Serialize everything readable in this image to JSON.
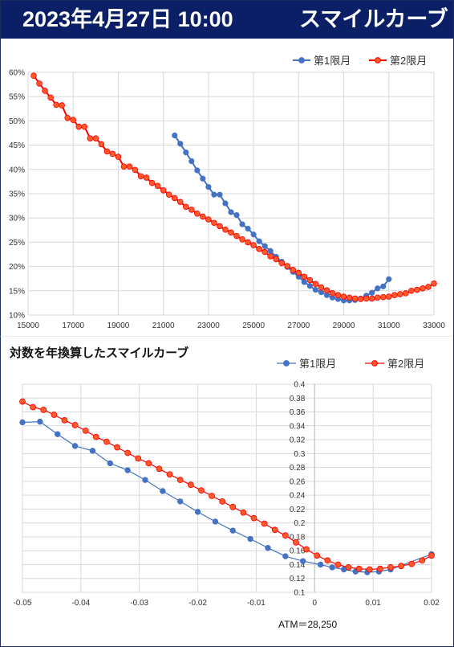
{
  "banner": {
    "date": "2023年4月27日 10:00",
    "title": "スマイルカーブ"
  },
  "colors": {
    "banner_bg": "#0a1f66",
    "series1": "#4472c4",
    "series2": "#ff0000",
    "series2_fill": "#ff5a2c",
    "grid": "#d9d9d9"
  },
  "chart_data": [
    {
      "type": "line",
      "title": "",
      "xlabel": "",
      "ylabel": "",
      "xlim": [
        15000,
        33000
      ],
      "ylim": [
        0.1,
        0.6
      ],
      "xticks": [
        "15000",
        "17000",
        "19000",
        "21000",
        "23000",
        "25000",
        "27000",
        "29000",
        "31000",
        "33000"
      ],
      "yticks": [
        "10%",
        "15%",
        "20%",
        "25%",
        "30%",
        "35%",
        "40%",
        "45%",
        "50%",
        "55%",
        "60%"
      ],
      "grid": true,
      "legend": "top-right",
      "series": [
        {
          "name": "第1限月",
          "x": [
            21500,
            21750,
            22000,
            22250,
            22500,
            22750,
            23000,
            23250,
            23500,
            23750,
            24000,
            24250,
            24500,
            24750,
            25000,
            25250,
            25500,
            25750,
            26000,
            26250,
            26500,
            26750,
            27000,
            27250,
            27500,
            27750,
            28000,
            28250,
            28500,
            28750,
            29000,
            29250,
            29500,
            29750,
            30000,
            30250,
            30500,
            30750,
            31000
          ],
          "y": [
            0.47,
            0.453,
            0.435,
            0.417,
            0.398,
            0.381,
            0.364,
            0.348,
            0.348,
            0.33,
            0.312,
            0.306,
            0.287,
            0.278,
            0.266,
            0.252,
            0.242,
            0.232,
            0.22,
            0.21,
            0.199,
            0.189,
            0.179,
            0.168,
            0.16,
            0.152,
            0.147,
            0.141,
            0.136,
            0.133,
            0.13,
            0.13,
            0.131,
            0.134,
            0.14,
            0.146,
            0.155,
            0.159,
            0.174
          ]
        },
        {
          "name": "第2限月",
          "x": [
            15250,
            15500,
            15750,
            16000,
            16250,
            16500,
            16750,
            17000,
            17250,
            17500,
            17750,
            18000,
            18250,
            18500,
            18750,
            19000,
            19250,
            19500,
            19750,
            20000,
            20250,
            20500,
            20750,
            21000,
            21250,
            21500,
            21750,
            22000,
            22250,
            22500,
            22750,
            23000,
            23250,
            23500,
            23750,
            24000,
            24250,
            24500,
            24750,
            25000,
            25250,
            25500,
            25750,
            26000,
            26250,
            26500,
            26750,
            27000,
            27250,
            27500,
            27750,
            28000,
            28250,
            28500,
            28750,
            29000,
            29250,
            29500,
            29750,
            30000,
            30250,
            30500,
            30750,
            31000,
            31250,
            31500,
            31750,
            32000,
            32250,
            32500,
            32750,
            33000
          ],
          "y": [
            0.593,
            0.577,
            0.562,
            0.548,
            0.533,
            0.532,
            0.506,
            0.502,
            0.488,
            0.488,
            0.464,
            0.464,
            0.452,
            0.437,
            0.432,
            0.426,
            0.406,
            0.406,
            0.399,
            0.386,
            0.383,
            0.372,
            0.366,
            0.357,
            0.348,
            0.341,
            0.333,
            0.323,
            0.317,
            0.309,
            0.303,
            0.297,
            0.29,
            0.283,
            0.276,
            0.27,
            0.263,
            0.256,
            0.25,
            0.244,
            0.236,
            0.23,
            0.221,
            0.215,
            0.207,
            0.201,
            0.193,
            0.187,
            0.179,
            0.172,
            0.164,
            0.157,
            0.151,
            0.145,
            0.141,
            0.138,
            0.136,
            0.134,
            0.133,
            0.134,
            0.134,
            0.136,
            0.137,
            0.138,
            0.141,
            0.143,
            0.145,
            0.15,
            0.152,
            0.155,
            0.158,
            0.165
          ]
        }
      ]
    },
    {
      "type": "line",
      "title": "対数を年換算したスマイルカーブ",
      "xlabel": "",
      "ylabel": "",
      "xlim": [
        -0.05,
        0.02
      ],
      "ylim": [
        0.1,
        0.4
      ],
      "xticks": [
        "-0.05",
        "-0.04",
        "-0.03",
        "-0.02",
        "-0.01",
        "0",
        "0.01",
        "0.02"
      ],
      "yticks": [
        "0.1",
        "0.12",
        "0.14",
        "0.16",
        "0.18",
        "0.2",
        "0.22",
        "0.24",
        "0.26",
        "0.28",
        "0.3",
        "0.32",
        "0.34",
        "0.36",
        "0.38",
        "0.4"
      ],
      "grid": true,
      "legend": "top-right",
      "note": "ATM＝28,250",
      "series": [
        {
          "name": "第1限月",
          "x": [
            -0.05,
            -0.047,
            -0.044,
            -0.041,
            -0.038,
            -0.035,
            -0.032,
            -0.029,
            -0.026,
            -0.023,
            -0.02,
            -0.017,
            -0.014,
            -0.011,
            -0.008,
            -0.005,
            -0.002,
            0.001,
            0.003,
            0.005,
            0.007,
            0.009,
            0.011,
            0.013,
            0.02
          ],
          "y": [
            0.345,
            0.346,
            0.328,
            0.311,
            0.304,
            0.286,
            0.276,
            0.262,
            0.246,
            0.231,
            0.216,
            0.202,
            0.189,
            0.177,
            0.164,
            0.152,
            0.145,
            0.14,
            0.136,
            0.133,
            0.13,
            0.129,
            0.13,
            0.133,
            0.155
          ]
        },
        {
          "name": "第2限月",
          "x": [
            -0.05,
            -0.0482,
            -0.0464,
            -0.0446,
            -0.0428,
            -0.041,
            -0.0392,
            -0.0374,
            -0.0356,
            -0.0338,
            -0.032,
            -0.0302,
            -0.0284,
            -0.0266,
            -0.0248,
            -0.023,
            -0.0212,
            -0.0194,
            -0.0176,
            -0.0158,
            -0.014,
            -0.0122,
            -0.0104,
            -0.0086,
            -0.0068,
            -0.005,
            -0.0032,
            -0.0014,
            0.0004,
            0.0022,
            0.004,
            0.0058,
            0.0076,
            0.0094,
            0.0112,
            0.013,
            0.0148,
            0.0166,
            0.0184,
            0.02
          ],
          "y": [
            0.375,
            0.367,
            0.363,
            0.356,
            0.348,
            0.341,
            0.333,
            0.324,
            0.317,
            0.309,
            0.301,
            0.293,
            0.286,
            0.278,
            0.27,
            0.262,
            0.255,
            0.247,
            0.239,
            0.231,
            0.223,
            0.215,
            0.207,
            0.199,
            0.19,
            0.182,
            0.172,
            0.162,
            0.153,
            0.146,
            0.14,
            0.136,
            0.134,
            0.133,
            0.134,
            0.136,
            0.138,
            0.141,
            0.146,
            0.153
          ]
        }
      ]
    }
  ]
}
